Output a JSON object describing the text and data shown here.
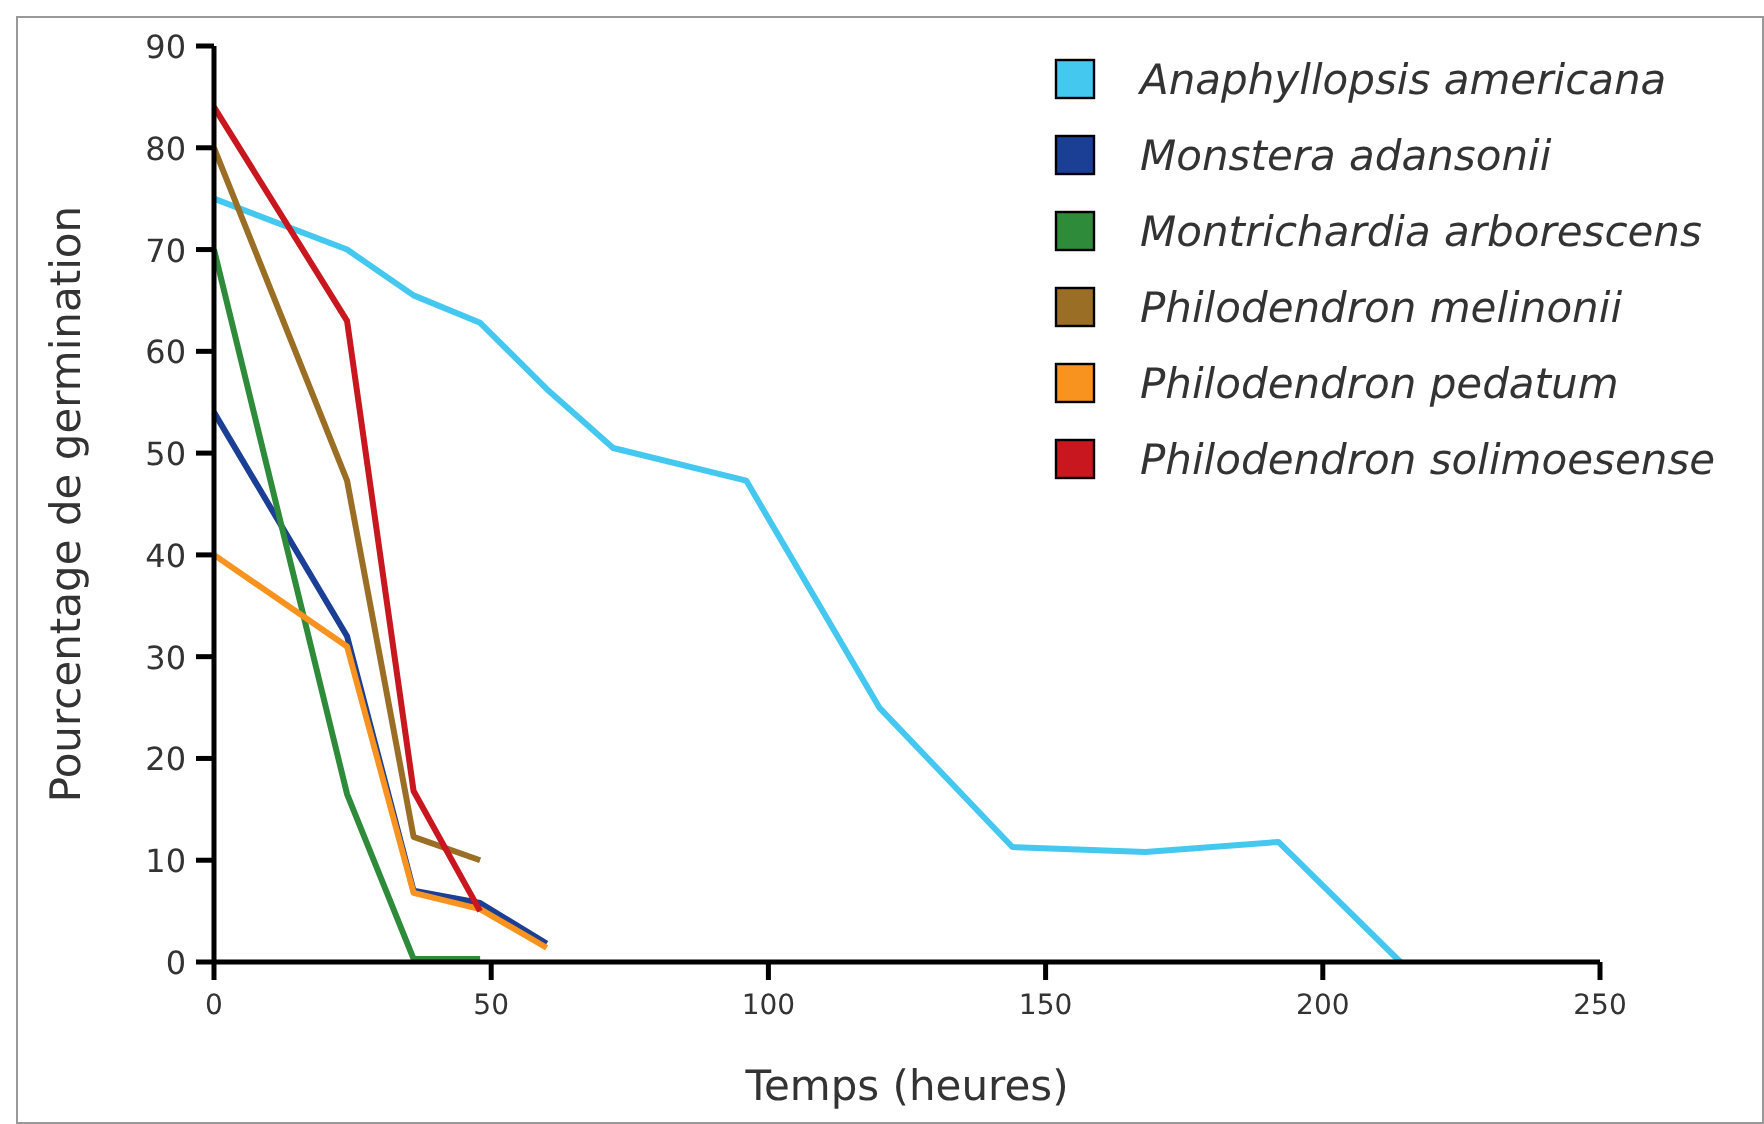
{
  "chart_data": {
    "type": "line",
    "xlabel": "Temps (heures)",
    "ylabel": "Pourcentage de germination",
    "xlim": [
      0,
      250
    ],
    "xticks": [
      0,
      50,
      100,
      150,
      200,
      250
    ],
    "ylim": [
      0,
      90
    ],
    "yticks": [
      0,
      10,
      20,
      30,
      40,
      50,
      60,
      70,
      80,
      90
    ],
    "legend": "top right",
    "grid": false,
    "series": [
      {
        "name": "Anaphyllopsis americana",
        "color": "#45c8f0",
        "x": [
          0,
          24,
          36,
          48,
          60,
          72,
          96,
          120,
          144,
          168,
          192,
          214
        ],
        "values": [
          75,
          70,
          65.5,
          62.8,
          56.3,
          50.5,
          47.3,
          25,
          11.3,
          10.8,
          11.8,
          0
        ]
      },
      {
        "name": "Monstera adansonii",
        "color": "#1b3f94",
        "x": [
          0,
          24,
          36,
          48,
          60
        ],
        "values": [
          54,
          32,
          7,
          5.8,
          1.8
        ]
      },
      {
        "name": "Montrichardia arborescens",
        "color": "#2e8b3a",
        "x": [
          0,
          24,
          36,
          48
        ],
        "values": [
          70,
          16.5,
          0.3,
          0.3
        ]
      },
      {
        "name": "Philodendron melinonii",
        "color": "#9a6e25",
        "x": [
          0,
          24,
          36,
          48
        ],
        "values": [
          80,
          47.3,
          12.3,
          10
        ]
      },
      {
        "name": "Philodendron pedatum",
        "color": "#f7931e",
        "x": [
          0,
          24,
          36,
          48,
          60
        ],
        "values": [
          40,
          31,
          6.8,
          5.2,
          1.4
        ]
      },
      {
        "name": "Philodendron solimoesense",
        "color": "#c8171e",
        "x": [
          0,
          24,
          36,
          48
        ],
        "values": [
          84,
          63,
          16.8,
          5
        ]
      }
    ]
  }
}
